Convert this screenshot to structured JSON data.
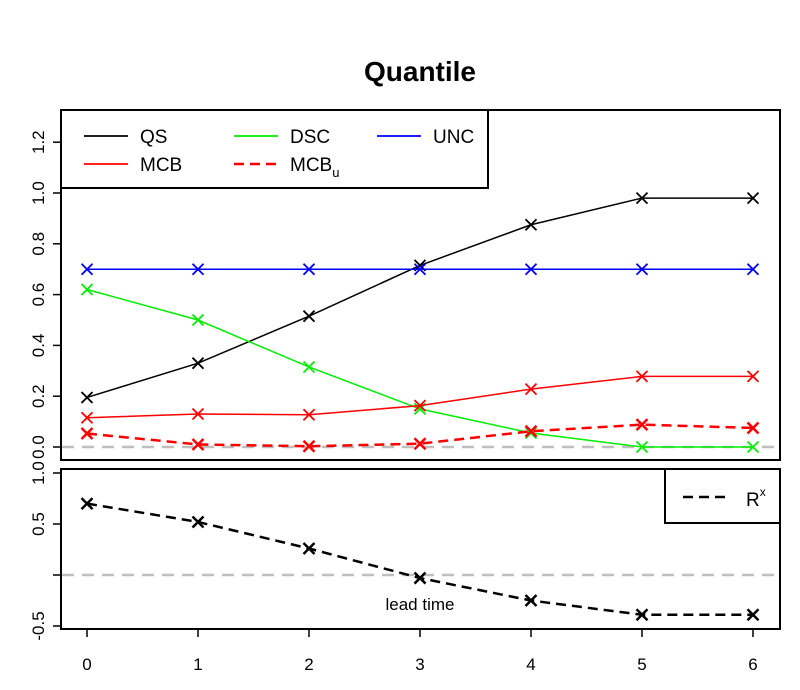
{
  "chart_data": [
    {
      "type": "line",
      "title": "Quantile",
      "xlabel": "",
      "ylabel": "",
      "x": [
        0,
        1,
        2,
        3,
        4,
        5,
        6
      ],
      "ylim": [
        0,
        1.3
      ],
      "yticks": [
        "0.0",
        "0.2",
        "0.4",
        "0.6",
        "0.8",
        "1.0",
        "1.2"
      ],
      "reference_line": 0,
      "legend_placement": "top-left",
      "series": [
        {
          "name": "QS",
          "color": "#000000",
          "dash": "solid",
          "values": [
            0.195,
            0.33,
            0.515,
            0.715,
            0.875,
            0.98,
            0.98
          ]
        },
        {
          "name": "MCB",
          "color": "#ff0000",
          "dash": "solid",
          "values": [
            0.115,
            0.13,
            0.127,
            0.163,
            0.228,
            0.278,
            0.278
          ]
        },
        {
          "name": "DSC",
          "color": "#00ee00",
          "dash": "solid",
          "values": [
            0.62,
            0.5,
            0.315,
            0.15,
            0.055,
            0.0,
            0.0
          ]
        },
        {
          "name": "MCB",
          "subscript": "u",
          "color": "#ff0000",
          "dash": "dashed",
          "values": [
            0.053,
            0.01,
            0.003,
            0.013,
            0.062,
            0.088,
            0.075
          ]
        },
        {
          "name": "UNC",
          "color": "#0000ff",
          "dash": "solid",
          "values": [
            0.7,
            0.7,
            0.7,
            0.7,
            0.7,
            0.7,
            0.7
          ]
        }
      ]
    },
    {
      "type": "line",
      "title": "",
      "xlabel": "lead time",
      "ylabel": "",
      "x": [
        0,
        1,
        2,
        3,
        4,
        5,
        6
      ],
      "xticks": [
        "0",
        "1",
        "2",
        "3",
        "4",
        "5",
        "6"
      ],
      "ylim": [
        -0.6,
        1.05
      ],
      "yticks": [
        "-0.5",
        "0.5",
        "1.0"
      ],
      "reference_line": 0,
      "legend_placement": "top-right",
      "series": [
        {
          "name": "R",
          "superscript": "x",
          "color": "#000000",
          "dash": "dashed",
          "values": [
            0.7,
            0.52,
            0.26,
            -0.03,
            -0.25,
            -0.39,
            -0.39
          ]
        }
      ]
    }
  ]
}
